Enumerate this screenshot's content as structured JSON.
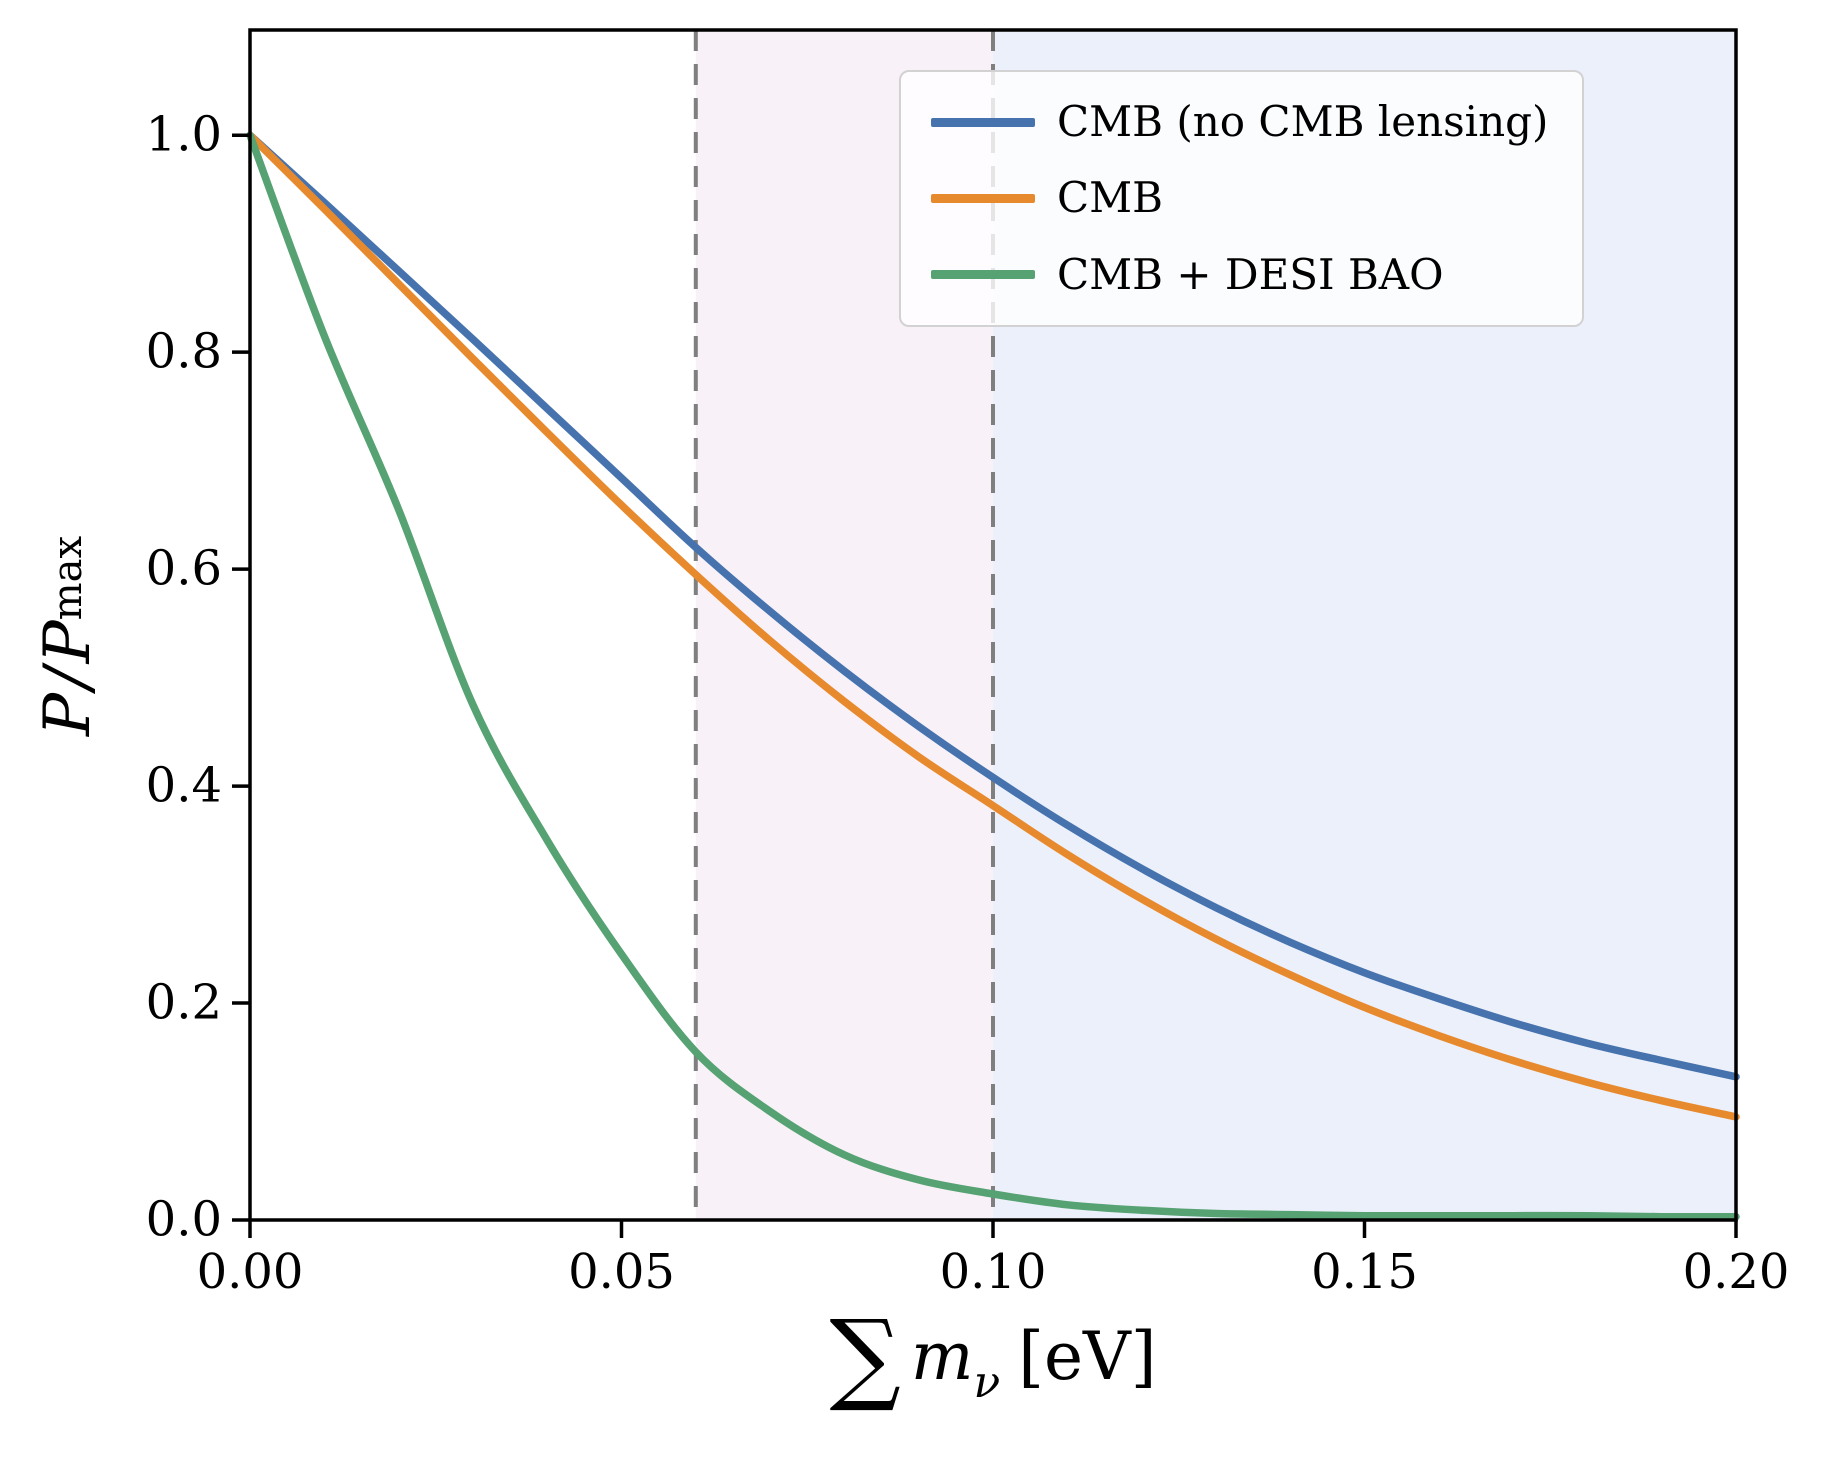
{
  "chart_data": {
    "type": "line",
    "title": "",
    "xlabel": "∑ m_ν [eV]",
    "ylabel": "P / P_max",
    "xlabel_parts": {
      "sigma": "∑",
      "var": "m",
      "sub": "ν",
      "unit": "[eV]"
    },
    "ylabel_parts": {
      "num": "P",
      "slash": "/",
      "den": "P",
      "den_sub": "max"
    },
    "xlim": [
      0,
      0.2
    ],
    "ylim": [
      0,
      1.097
    ],
    "grid": false,
    "legend_position": "upper right",
    "xticks": {
      "values": [
        0.0,
        0.05,
        0.1,
        0.15,
        0.2
      ],
      "labels": [
        "0.00",
        "0.05",
        "0.10",
        "0.15",
        "0.20"
      ]
    },
    "yticks": {
      "values": [
        0.0,
        0.2,
        0.4,
        0.6,
        0.8,
        1.0
      ],
      "labels": [
        "0.0",
        "0.2",
        "0.4",
        "0.6",
        "0.8",
        "1.0"
      ]
    },
    "x": [
      0.0,
      0.01,
      0.02,
      0.03,
      0.04,
      0.05,
      0.06,
      0.07,
      0.08,
      0.09,
      0.1,
      0.11,
      0.12,
      0.13,
      0.14,
      0.15,
      0.16,
      0.17,
      0.18,
      0.19,
      0.2
    ],
    "series": [
      {
        "name": "CMB (no CMB lensing)",
        "color": "#4673AE",
        "values": [
          1.0,
          0.938,
          0.875,
          0.812,
          0.748,
          0.684,
          0.62,
          0.561,
          0.506,
          0.455,
          0.408,
          0.364,
          0.324,
          0.288,
          0.256,
          0.228,
          0.204,
          0.182,
          0.163,
          0.147,
          0.132
        ]
      },
      {
        "name": "CMB",
        "color": "#E78A2E",
        "values": [
          1.0,
          0.932,
          0.863,
          0.794,
          0.726,
          0.659,
          0.595,
          0.534,
          0.478,
          0.427,
          0.382,
          0.337,
          0.296,
          0.259,
          0.226,
          0.196,
          0.17,
          0.147,
          0.127,
          0.11,
          0.095
        ]
      },
      {
        "name": "CMB + DESI BAO",
        "color": "#56A273",
        "values": [
          1.0,
          0.815,
          0.655,
          0.475,
          0.35,
          0.245,
          0.155,
          0.1,
          0.06,
          0.037,
          0.024,
          0.014,
          0.009,
          0.006,
          0.005,
          0.004,
          0.004,
          0.004,
          0.004,
          0.003,
          0.003
        ]
      }
    ],
    "vlines": [
      {
        "x": 0.06,
        "style": "dashed",
        "color": "#7f7f7f"
      },
      {
        "x": 0.1,
        "style": "dashed",
        "color": "#7f7f7f"
      }
    ],
    "bands": [
      {
        "from": 0.06,
        "to": 0.1,
        "color": "#f9f1f8"
      },
      {
        "from": 0.1,
        "to": 0.2,
        "color": "#ecf0fa"
      }
    ]
  }
}
